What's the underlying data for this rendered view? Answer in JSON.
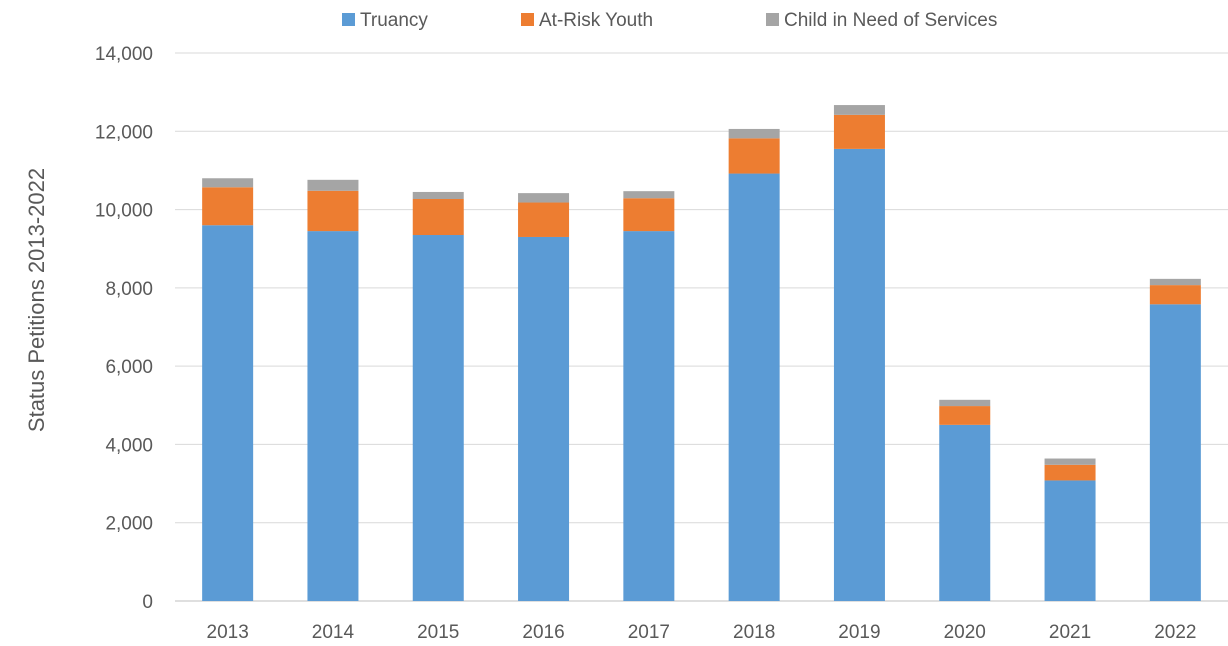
{
  "chart_data": {
    "type": "bar",
    "stacked": true,
    "title": "",
    "xlabel": "",
    "ylabel": "Status Petitions 2013-2022",
    "ylim": [
      0,
      14000
    ],
    "y_ticks": [
      "0",
      "2,000",
      "4,000",
      "6,000",
      "8,000",
      "10,000",
      "12,000",
      "14,000"
    ],
    "y_tick_values": [
      0,
      2000,
      4000,
      6000,
      8000,
      10000,
      12000,
      14000
    ],
    "grid": true,
    "legend_position": "top",
    "categories": [
      "2013",
      "2014",
      "2015",
      "2016",
      "2017",
      "2018",
      "2019",
      "2020",
      "2021",
      "2022"
    ],
    "series": [
      {
        "name": "Truancy",
        "color": "#5b9bd5",
        "values": [
          9600,
          9450,
          9350,
          9300,
          9450,
          10920,
          11550,
          4500,
          3080,
          7580
        ]
      },
      {
        "name": "At-Risk Youth",
        "color": "#ed7d31",
        "values": [
          970,
          1030,
          920,
          880,
          840,
          900,
          870,
          480,
          400,
          490
        ]
      },
      {
        "name": "Child in Need of Services",
        "color": "#a5a5a5",
        "values": [
          230,
          280,
          180,
          240,
          180,
          240,
          250,
          160,
          160,
          160
        ]
      }
    ]
  }
}
